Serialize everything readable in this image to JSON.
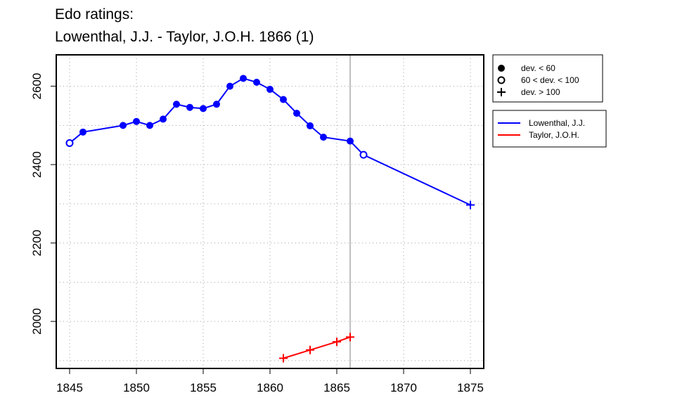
{
  "title_line1": "Edo ratings:",
  "title_line2": "Lowenthal, J.J. - Taylor, J.O.H. 1866 (1)",
  "chart_data": {
    "type": "line",
    "xlim": [
      1844,
      1876
    ],
    "ylim": [
      1880,
      2680
    ],
    "x_ticks": [
      1845,
      1850,
      1855,
      1860,
      1865,
      1870,
      1875
    ],
    "y_ticks": [
      2000,
      2200,
      2400,
      2600
    ],
    "grid": true,
    "reference_line_x": 1866,
    "marker_legend": [
      {
        "label": "dev. < 60",
        "marker": "filled-circle"
      },
      {
        "label": "60 < dev. < 100",
        "marker": "open-circle"
      },
      {
        "label": "dev. > 100",
        "marker": "plus"
      }
    ],
    "series": [
      {
        "name": "Lowenthal, J.J.",
        "color": "#0000ff",
        "points": [
          {
            "x": 1845,
            "y": 2455,
            "dev": "open-circle"
          },
          {
            "x": 1846,
            "y": 2483,
            "dev": "filled-circle"
          },
          {
            "x": 1849,
            "y": 2500,
            "dev": "filled-circle"
          },
          {
            "x": 1850,
            "y": 2510,
            "dev": "filled-circle"
          },
          {
            "x": 1851,
            "y": 2500,
            "dev": "filled-circle"
          },
          {
            "x": 1852,
            "y": 2516,
            "dev": "filled-circle"
          },
          {
            "x": 1853,
            "y": 2554,
            "dev": "filled-circle"
          },
          {
            "x": 1854,
            "y": 2546,
            "dev": "filled-circle"
          },
          {
            "x": 1855,
            "y": 2543,
            "dev": "filled-circle"
          },
          {
            "x": 1856,
            "y": 2554,
            "dev": "filled-circle"
          },
          {
            "x": 1857,
            "y": 2600,
            "dev": "filled-circle"
          },
          {
            "x": 1858,
            "y": 2620,
            "dev": "filled-circle"
          },
          {
            "x": 1859,
            "y": 2610,
            "dev": "filled-circle"
          },
          {
            "x": 1860,
            "y": 2592,
            "dev": "filled-circle"
          },
          {
            "x": 1861,
            "y": 2566,
            "dev": "filled-circle"
          },
          {
            "x": 1862,
            "y": 2531,
            "dev": "filled-circle"
          },
          {
            "x": 1863,
            "y": 2499,
            "dev": "filled-circle"
          },
          {
            "x": 1864,
            "y": 2470,
            "dev": "filled-circle"
          },
          {
            "x": 1866,
            "y": 2460,
            "dev": "filled-circle"
          },
          {
            "x": 1867,
            "y": 2425,
            "dev": "open-circle"
          },
          {
            "x": 1875,
            "y": 2297,
            "dev": "plus"
          }
        ]
      },
      {
        "name": "Taylor, J.O.H.",
        "color": "#ff0000",
        "points": [
          {
            "x": 1861,
            "y": 1906,
            "dev": "plus"
          },
          {
            "x": 1863,
            "y": 1927,
            "dev": "plus"
          },
          {
            "x": 1865,
            "y": 1948,
            "dev": "plus"
          },
          {
            "x": 1866,
            "y": 1960,
            "dev": "plus"
          }
        ]
      }
    ]
  }
}
